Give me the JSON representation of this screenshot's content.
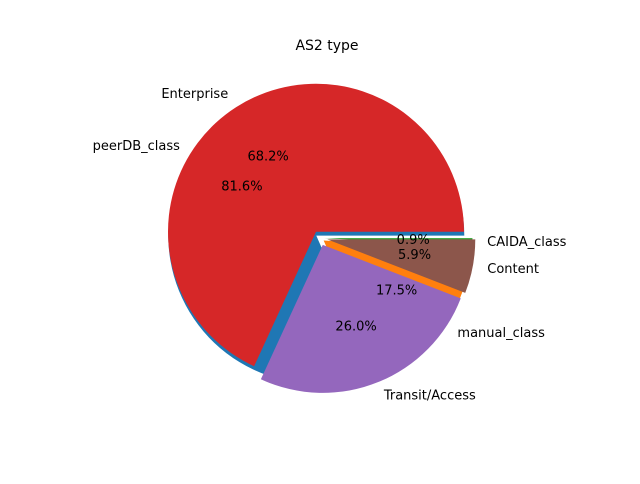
{
  "chart_data": {
    "type": "pie",
    "title": "AS2 type",
    "layers": [
      {
        "slices": [
          {
            "label": "peerDB_class",
            "value": 81.6,
            "pct_label": "81.6%",
            "color": "#1f77b4"
          },
          {
            "label": "manual_class",
            "value": 17.5,
            "pct_label": "17.5%",
            "color": "#ff7f0e"
          },
          {
            "label": "CAIDA_class",
            "value": 0.9,
            "pct_label": "0.9%",
            "color": "#2ca02c"
          }
        ]
      },
      {
        "slices": [
          {
            "label": "Enterprise",
            "value": 68.2,
            "pct_label": "68.2%",
            "color": "#d62728"
          },
          {
            "label": "Transit/Access",
            "value": 26.0,
            "pct_label": "26.0%",
            "color": "#9467bd"
          },
          {
            "label": "Content",
            "value": 5.9,
            "pct_label": "5.9%",
            "color": "#8c564b"
          }
        ]
      }
    ]
  }
}
